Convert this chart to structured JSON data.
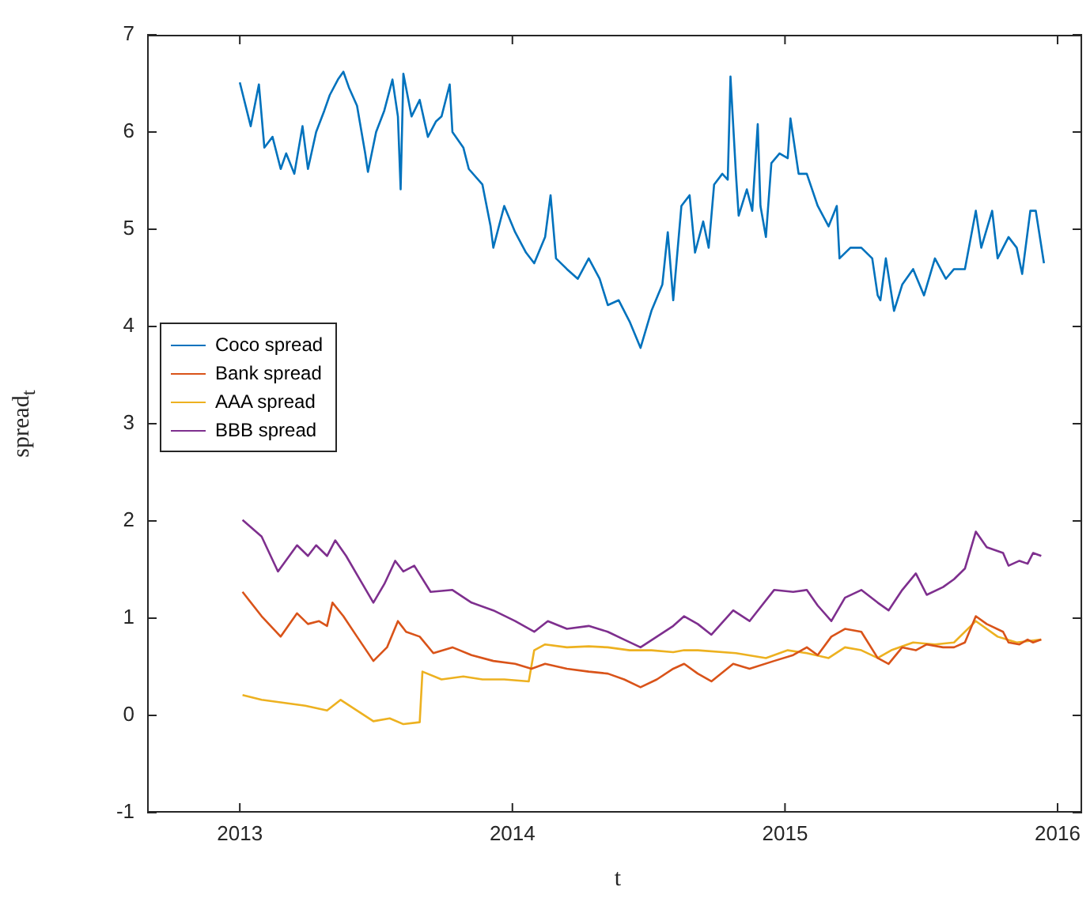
{
  "chart_data": {
    "type": "line",
    "xlabel": "t",
    "ylabel": "spread$_{t}$",
    "xlim": [
      2012.66,
      2016.09
    ],
    "xticks": [
      2013,
      2014,
      2015,
      2016
    ],
    "ylim": [
      -1,
      7
    ],
    "yticks": [
      -1,
      0,
      1,
      2,
      3,
      4,
      5,
      6,
      7
    ],
    "grid": false,
    "legend": "left",
    "marker": "none",
    "line_style": "solid",
    "series": [
      {
        "name": "Coco spread",
        "color": "#0072bd",
        "x": [
          2013.0,
          2013.04,
          2013.07,
          2013.09,
          2013.12,
          2013.15,
          2013.17,
          2013.2,
          2013.23,
          2013.25,
          2013.28,
          2013.31,
          2013.33,
          2013.36,
          2013.38,
          2013.4,
          2013.43,
          2013.46,
          2013.47,
          2013.5,
          2013.53,
          2013.56,
          2013.58,
          2013.59,
          2013.6,
          2013.63,
          2013.66,
          2013.69,
          2013.72,
          2013.74,
          2013.77,
          2013.78,
          2013.82,
          2013.84,
          2013.89,
          2013.92,
          2013.93,
          2013.97,
          2014.01,
          2014.05,
          2014.08,
          2014.12,
          2014.14,
          2014.16,
          2014.2,
          2014.24,
          2014.28,
          2014.32,
          2014.35,
          2014.39,
          2014.43,
          2014.47,
          2014.51,
          2014.55,
          2014.57,
          2014.59,
          2014.62,
          2014.65,
          2014.67,
          2014.7,
          2014.72,
          2014.74,
          2014.77,
          2014.79,
          2014.8,
          2014.82,
          2014.83,
          2014.86,
          2014.88,
          2014.9,
          2014.91,
          2014.93,
          2014.95,
          2014.98,
          2015.01,
          2015.02,
          2015.05,
          2015.08,
          2015.12,
          2015.16,
          2015.19,
          2015.2,
          2015.24,
          2015.28,
          2015.32,
          2015.34,
          2015.35,
          2015.37,
          2015.4,
          2015.43,
          2015.47,
          2015.51,
          2015.55,
          2015.59,
          2015.62,
          2015.66,
          2015.7,
          2015.72,
          2015.76,
          2015.78,
          2015.82,
          2015.85,
          2015.87,
          2015.9,
          2015.92,
          2015.95
        ],
        "values": [
          6.51,
          6.06,
          6.49,
          5.84,
          5.95,
          5.62,
          5.78,
          5.57,
          6.06,
          5.62,
          6.0,
          6.22,
          6.38,
          6.54,
          6.62,
          6.46,
          6.27,
          5.78,
          5.59,
          6.0,
          6.22,
          6.54,
          6.16,
          5.41,
          6.6,
          6.16,
          6.33,
          5.95,
          6.11,
          6.16,
          6.49,
          6.0,
          5.84,
          5.62,
          5.46,
          5.03,
          4.81,
          5.24,
          4.97,
          4.76,
          4.65,
          4.92,
          5.35,
          4.7,
          4.59,
          4.49,
          4.7,
          4.49,
          4.22,
          4.27,
          4.05,
          3.78,
          4.16,
          4.43,
          4.97,
          4.27,
          5.24,
          5.35,
          4.76,
          5.08,
          4.81,
          5.46,
          5.57,
          5.51,
          6.57,
          5.57,
          5.14,
          5.41,
          5.19,
          6.08,
          5.24,
          4.92,
          5.68,
          5.78,
          5.73,
          6.14,
          5.57,
          5.57,
          5.24,
          5.03,
          5.24,
          4.7,
          4.81,
          4.81,
          4.7,
          4.32,
          4.27,
          4.7,
          4.16,
          4.43,
          4.59,
          4.32,
          4.7,
          4.49,
          4.59,
          4.59,
          5.19,
          4.81,
          5.19,
          4.7,
          4.92,
          4.81,
          4.54,
          5.19,
          5.19,
          4.65
        ]
      },
      {
        "name": "Bank spread",
        "color": "#d95319",
        "x": [
          2013.01,
          2013.08,
          2013.15,
          2013.21,
          2013.25,
          2013.29,
          2013.32,
          2013.34,
          2013.38,
          2013.43,
          2013.49,
          2013.54,
          2013.58,
          2013.61,
          2013.66,
          2013.71,
          2013.78,
          2013.85,
          2013.93,
          2014.01,
          2014.07,
          2014.12,
          2014.2,
          2014.28,
          2014.35,
          2014.41,
          2014.47,
          2014.53,
          2014.59,
          2014.63,
          2014.68,
          2014.73,
          2014.81,
          2014.87,
          2014.96,
          2015.03,
          2015.08,
          2015.12,
          2015.17,
          2015.22,
          2015.28,
          2015.34,
          2015.38,
          2015.43,
          2015.48,
          2015.52,
          2015.58,
          2015.62,
          2015.66,
          2015.7,
          2015.74,
          2015.8,
          2015.82,
          2015.86,
          2015.89,
          2015.91,
          2015.94
        ],
        "values": [
          1.27,
          1.02,
          0.81,
          1.05,
          0.94,
          0.97,
          0.92,
          1.16,
          1.02,
          0.81,
          0.56,
          0.7,
          0.97,
          0.86,
          0.81,
          0.64,
          0.7,
          0.62,
          0.56,
          0.53,
          0.48,
          0.53,
          0.48,
          0.45,
          0.43,
          0.37,
          0.29,
          0.37,
          0.48,
          0.53,
          0.43,
          0.35,
          0.53,
          0.48,
          0.56,
          0.62,
          0.7,
          0.62,
          0.81,
          0.89,
          0.86,
          0.59,
          0.53,
          0.7,
          0.67,
          0.73,
          0.7,
          0.7,
          0.75,
          1.02,
          0.94,
          0.86,
          0.75,
          0.73,
          0.78,
          0.75,
          0.78
        ]
      },
      {
        "name": "AAA spread",
        "color": "#edb120",
        "x": [
          2013.01,
          2013.08,
          2013.16,
          2013.24,
          2013.32,
          2013.37,
          2013.43,
          2013.49,
          2013.55,
          2013.6,
          2013.66,
          2013.67,
          2013.74,
          2013.82,
          2013.89,
          2013.97,
          2014.06,
          2014.08,
          2014.12,
          2014.2,
          2014.28,
          2014.35,
          2014.43,
          2014.51,
          2014.59,
          2014.63,
          2014.68,
          2014.82,
          2014.93,
          2015.01,
          2015.08,
          2015.16,
          2015.22,
          2015.28,
          2015.34,
          2015.39,
          2015.47,
          2015.55,
          2015.62,
          2015.7,
          2015.78,
          2015.85,
          2015.94
        ],
        "values": [
          0.21,
          0.16,
          0.13,
          0.1,
          0.05,
          0.16,
          0.05,
          -0.06,
          -0.03,
          -0.09,
          -0.07,
          0.45,
          0.37,
          0.4,
          0.37,
          0.37,
          0.35,
          0.67,
          0.73,
          0.7,
          0.71,
          0.7,
          0.67,
          0.67,
          0.65,
          0.67,
          0.67,
          0.64,
          0.59,
          0.67,
          0.64,
          0.59,
          0.7,
          0.67,
          0.59,
          0.67,
          0.75,
          0.73,
          0.75,
          0.97,
          0.81,
          0.75,
          0.78
        ]
      },
      {
        "name": "BBB spread",
        "color": "#7e2f8e",
        "x": [
          2013.01,
          2013.08,
          2013.14,
          2013.21,
          2013.25,
          2013.28,
          2013.32,
          2013.35,
          2013.39,
          2013.44,
          2013.49,
          2013.53,
          2013.57,
          2013.6,
          2013.64,
          2013.7,
          2013.78,
          2013.85,
          2013.93,
          2014.01,
          2014.08,
          2014.13,
          2014.2,
          2014.28,
          2014.35,
          2014.41,
          2014.47,
          2014.53,
          2014.59,
          2014.63,
          2014.68,
          2014.73,
          2014.81,
          2014.87,
          2014.96,
          2015.03,
          2015.08,
          2015.12,
          2015.17,
          2015.22,
          2015.28,
          2015.34,
          2015.38,
          2015.43,
          2015.48,
          2015.52,
          2015.58,
          2015.62,
          2015.66,
          2015.7,
          2015.74,
          2015.8,
          2015.82,
          2015.86,
          2015.89,
          2015.91,
          2015.94
        ],
        "values": [
          2.01,
          1.84,
          1.48,
          1.75,
          1.64,
          1.75,
          1.64,
          1.8,
          1.64,
          1.4,
          1.16,
          1.35,
          1.59,
          1.48,
          1.54,
          1.27,
          1.29,
          1.16,
          1.08,
          0.97,
          0.86,
          0.97,
          0.89,
          0.92,
          0.86,
          0.78,
          0.7,
          0.81,
          0.92,
          1.02,
          0.94,
          0.83,
          1.08,
          0.97,
          1.29,
          1.27,
          1.29,
          1.13,
          0.97,
          1.21,
          1.29,
          1.16,
          1.08,
          1.29,
          1.46,
          1.24,
          1.32,
          1.4,
          1.51,
          1.89,
          1.73,
          1.67,
          1.54,
          1.59,
          1.56,
          1.67,
          1.64
        ]
      }
    ]
  }
}
